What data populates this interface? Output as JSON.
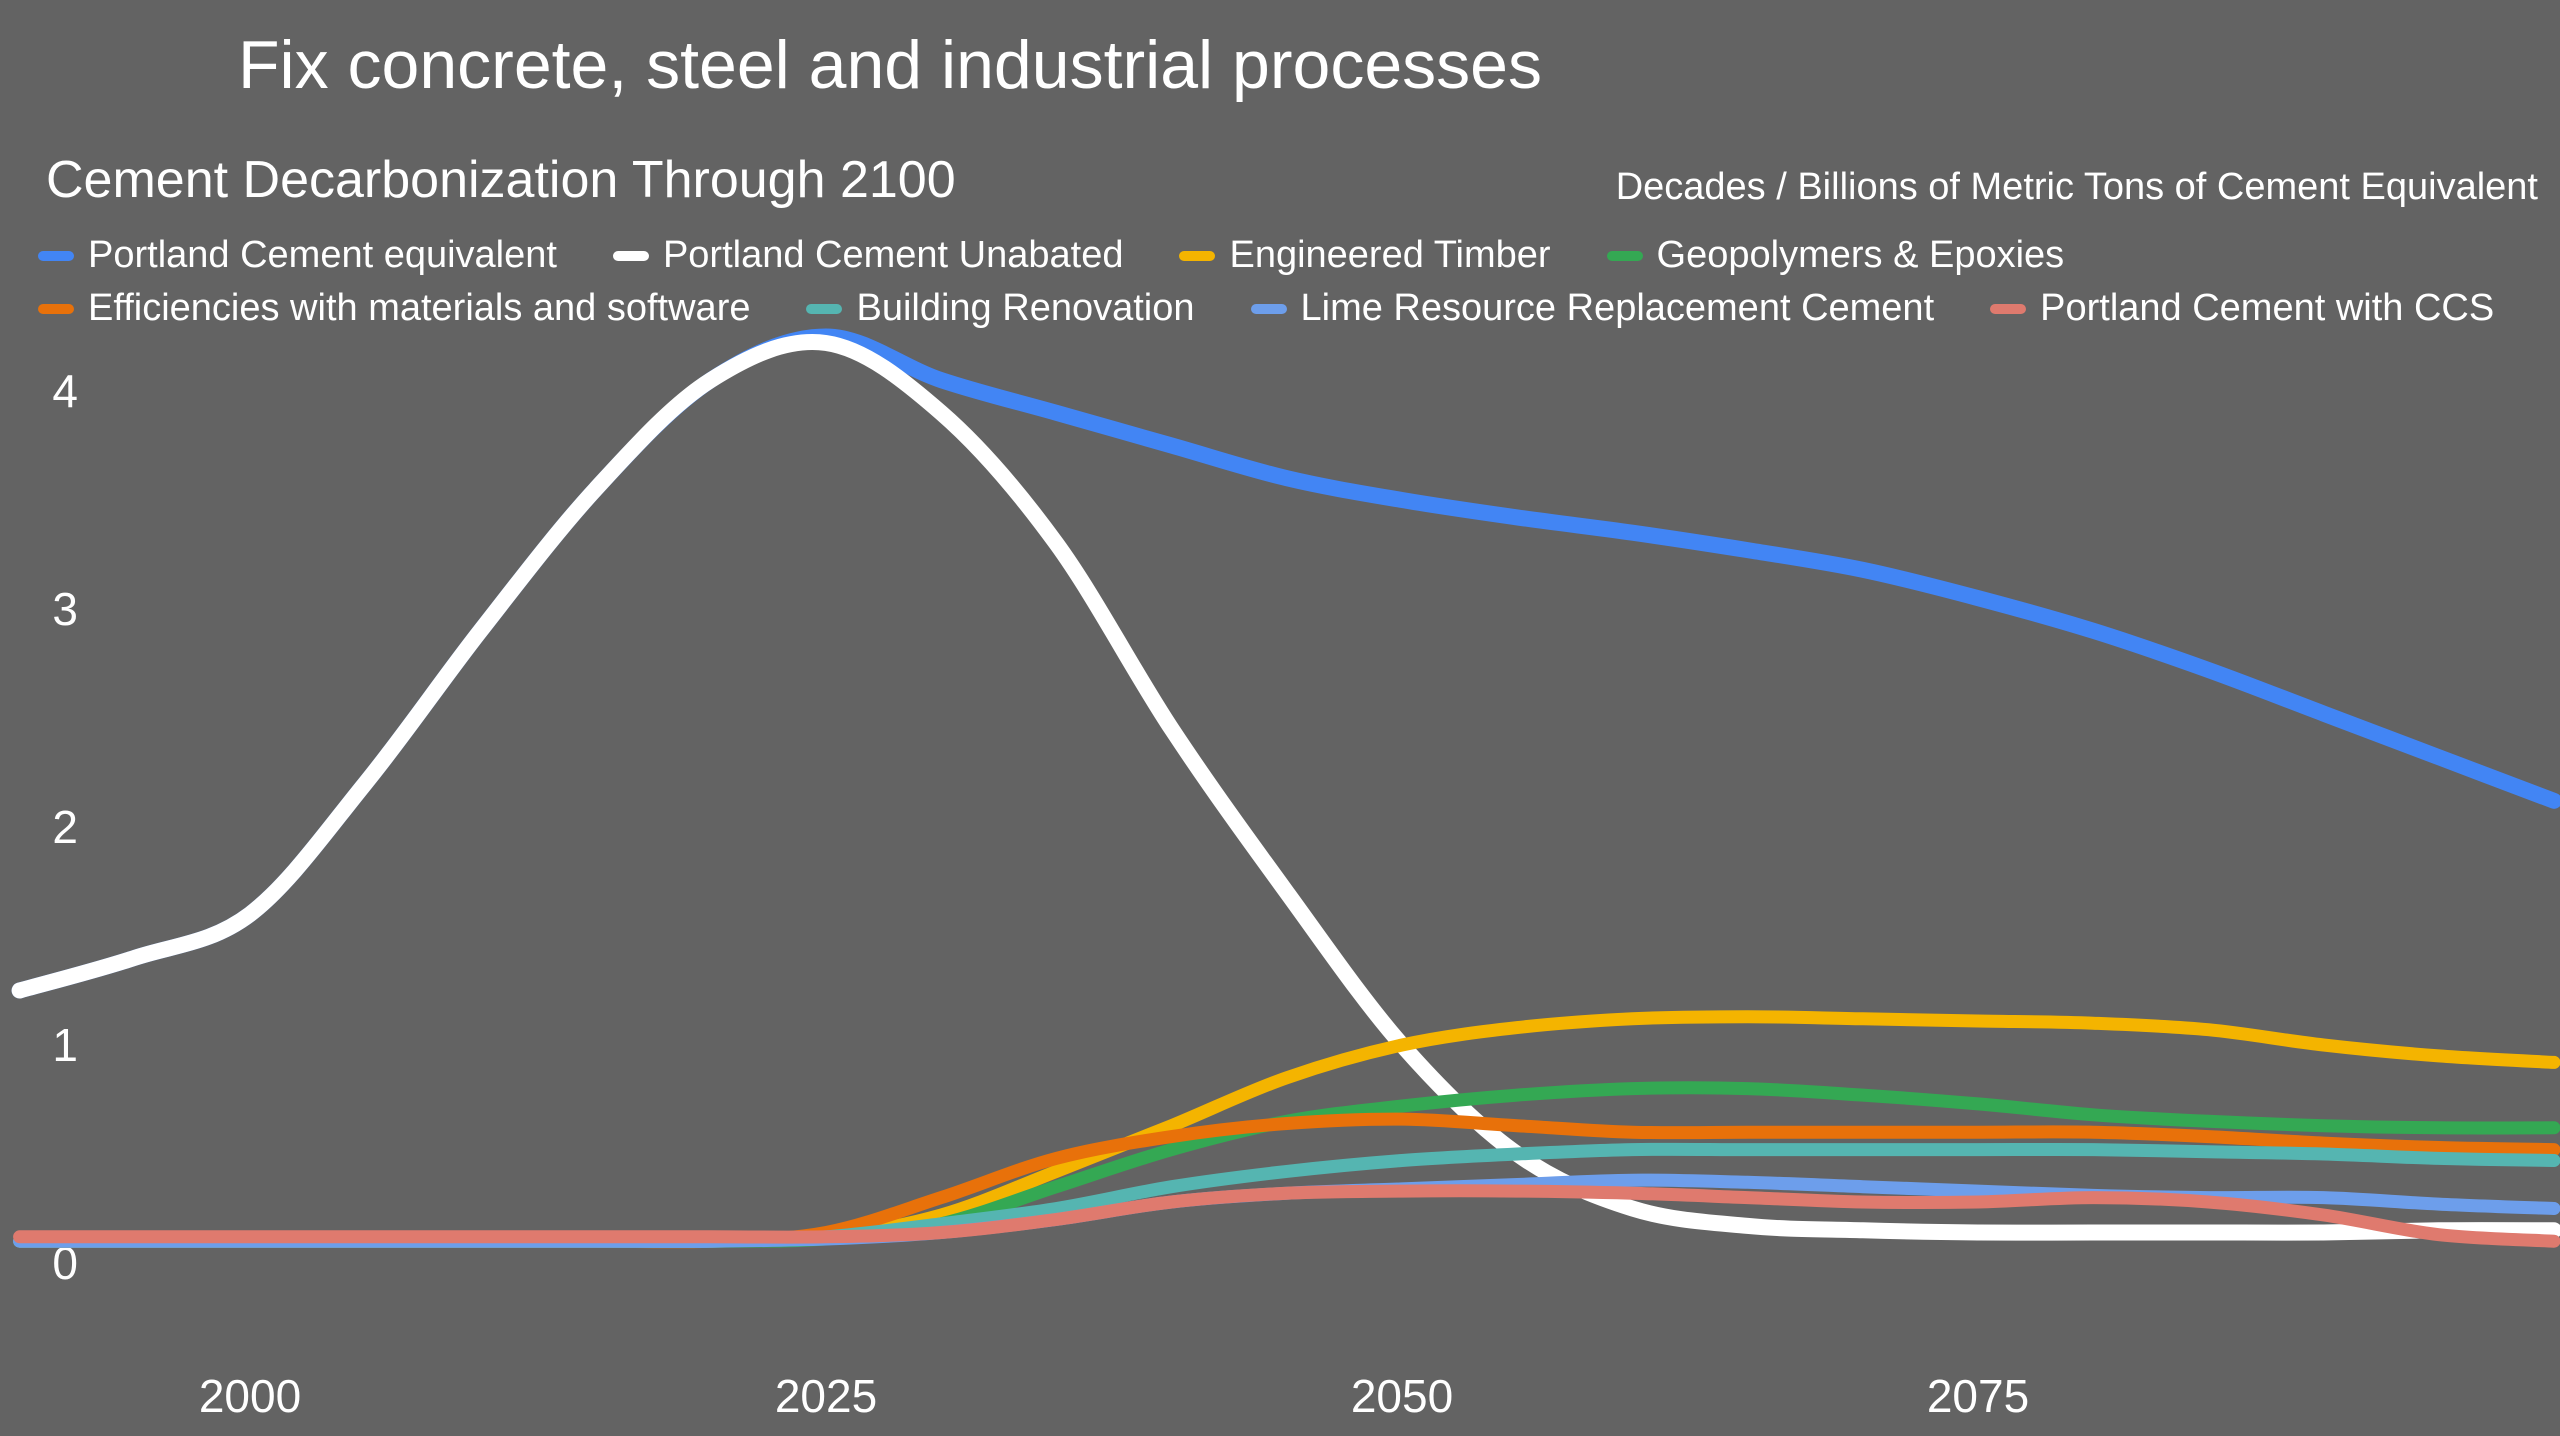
{
  "slide": {
    "title": "Fix concrete, steel and industrial processes",
    "background_color": "#636363",
    "text_color": "#ffffff"
  },
  "chart": {
    "title": "Cement Decarbonization Through 2100",
    "units_label": "Decades / Billions of Metric Tons of Cement Equivalent"
  },
  "chart_data": {
    "type": "line",
    "title": "Cement Decarbonization Through 2100",
    "xlabel": "Decades",
    "ylabel": "Billions of Metric Tons of Cement Equivalent",
    "xlim": [
      1990,
      2100
    ],
    "ylim": [
      0,
      4.6
    ],
    "x_ticks": [
      2000,
      2025,
      2050,
      2075
    ],
    "y_ticks": [
      0,
      1,
      2,
      3,
      4
    ],
    "grid": false,
    "legend_position": "top-left-two-rows",
    "x": [
      1990,
      1995,
      2000,
      2005,
      2010,
      2015,
      2020,
      2025,
      2030,
      2035,
      2040,
      2045,
      2050,
      2055,
      2060,
      2065,
      2070,
      2075,
      2080,
      2085,
      2090,
      2095,
      2100
    ],
    "series": [
      {
        "name": "Portland Cement equivalent",
        "color": "#4285F4",
        "values": [
          1.25,
          1.4,
          1.6,
          2.2,
          2.9,
          3.55,
          4.05,
          4.25,
          4.05,
          3.9,
          3.75,
          3.6,
          3.5,
          3.42,
          3.35,
          3.27,
          3.18,
          3.05,
          2.9,
          2.72,
          2.52,
          2.32,
          2.12
        ]
      },
      {
        "name": "Portland Cement Unabated",
        "color": "#FFFFFF",
        "values": [
          1.25,
          1.4,
          1.6,
          2.2,
          2.9,
          3.55,
          4.05,
          4.22,
          3.9,
          3.3,
          2.45,
          1.7,
          1.0,
          0.5,
          0.25,
          0.17,
          0.15,
          0.14,
          0.14,
          0.14,
          0.14,
          0.15,
          0.15
        ]
      },
      {
        "name": "Engineered Timber",
        "color": "#F4B400",
        "values": [
          0.1,
          0.1,
          0.1,
          0.1,
          0.1,
          0.1,
          0.1,
          0.12,
          0.22,
          0.42,
          0.63,
          0.85,
          1.0,
          1.08,
          1.12,
          1.13,
          1.12,
          1.11,
          1.1,
          1.07,
          1.0,
          0.95,
          0.92
        ]
      },
      {
        "name": "Geopolymers & Epoxies",
        "color": "#34A853",
        "values": [
          0.1,
          0.1,
          0.1,
          0.1,
          0.1,
          0.1,
          0.1,
          0.11,
          0.18,
          0.35,
          0.52,
          0.65,
          0.72,
          0.77,
          0.8,
          0.8,
          0.77,
          0.73,
          0.68,
          0.65,
          0.63,
          0.62,
          0.62
        ]
      },
      {
        "name": "Efficiencies with materials and software",
        "color": "#E8710A",
        "values": [
          0.1,
          0.1,
          0.1,
          0.1,
          0.1,
          0.1,
          0.1,
          0.14,
          0.3,
          0.48,
          0.58,
          0.64,
          0.66,
          0.63,
          0.6,
          0.6,
          0.6,
          0.6,
          0.6,
          0.58,
          0.55,
          0.53,
          0.52
        ]
      },
      {
        "name": "Building Renovation",
        "color": "#55B5B1",
        "values": [
          0.1,
          0.1,
          0.1,
          0.1,
          0.1,
          0.1,
          0.1,
          0.12,
          0.18,
          0.25,
          0.35,
          0.42,
          0.47,
          0.5,
          0.52,
          0.52,
          0.52,
          0.52,
          0.52,
          0.51,
          0.5,
          0.48,
          0.47
        ]
      },
      {
        "name": "Lime Resource Replacement Cement",
        "color": "#6D9EEB",
        "values": [
          0.1,
          0.1,
          0.1,
          0.1,
          0.1,
          0.1,
          0.1,
          0.11,
          0.14,
          0.2,
          0.28,
          0.32,
          0.34,
          0.36,
          0.38,
          0.37,
          0.35,
          0.33,
          0.31,
          0.3,
          0.3,
          0.27,
          0.25
        ]
      },
      {
        "name": "Portland Cement with CCS",
        "color": "#DF7A6E",
        "values": [
          0.12,
          0.12,
          0.12,
          0.12,
          0.12,
          0.12,
          0.12,
          0.12,
          0.14,
          0.2,
          0.28,
          0.32,
          0.33,
          0.33,
          0.32,
          0.3,
          0.28,
          0.28,
          0.3,
          0.28,
          0.22,
          0.13,
          0.1
        ]
      }
    ]
  }
}
